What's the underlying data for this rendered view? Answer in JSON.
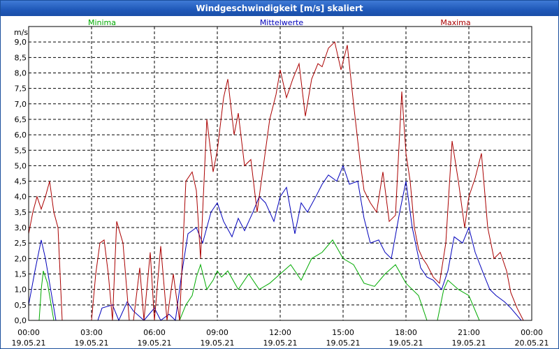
{
  "window": {
    "title": "Windgeschwindigkeit [m/s] skaliert"
  },
  "chart_data": {
    "type": "line",
    "title": "Windgeschwindigkeit [m/s] skaliert",
    "ylabel": "m/s",
    "xlabel": "",
    "ylim": [
      0,
      9.5
    ],
    "xlim_hours": [
      0,
      24
    ],
    "grid": true,
    "y_ticks": [
      "0,0",
      "0,5",
      "1,0",
      "1,5",
      "2,0",
      "2,5",
      "3,0",
      "3,5",
      "4,0",
      "4,5",
      "5,0",
      "5,5",
      "6,0",
      "6,5",
      "7,0",
      "7,5",
      "8,0",
      "8,5",
      "9,0"
    ],
    "x_ticks": [
      {
        "time": "00:00",
        "date": "19.05.21"
      },
      {
        "time": "03:00",
        "date": "19.05.21"
      },
      {
        "time": "06:00",
        "date": "19.05.21"
      },
      {
        "time": "09:00",
        "date": "19.05.21"
      },
      {
        "time": "12:00",
        "date": "19.05.21"
      },
      {
        "time": "15:00",
        "date": "19.05.21"
      },
      {
        "time": "18:00",
        "date": "19.05.21"
      },
      {
        "time": "21:00",
        "date": "19.05.21"
      },
      {
        "time": "00:00",
        "date": "20.05.21"
      }
    ],
    "series": [
      {
        "name": "Minima",
        "color": "#00aa00",
        "x": [
          0,
          0.5,
          0.6,
          0.7,
          0.9,
          1.2,
          1.5,
          2,
          2.5,
          3,
          3.5,
          3.7,
          4,
          4.5,
          5,
          5.5,
          6,
          6.5,
          7,
          7.2,
          7.5,
          7.8,
          8,
          8.2,
          8.5,
          8.8,
          9,
          9.2,
          9.5,
          10,
          10.5,
          11,
          11.5,
          12,
          12.5,
          13,
          13.5,
          14,
          14.5,
          15,
          15.5,
          16,
          16.5,
          17,
          17.5,
          18,
          18.3,
          18.6,
          19,
          19.5,
          19.8,
          20,
          20.5,
          21,
          21.5,
          22,
          22.5,
          23,
          23.5,
          24
        ],
        "values": [
          0,
          0,
          1.0,
          1.6,
          1.2,
          0,
          0,
          0,
          0,
          0,
          0,
          0,
          0,
          0,
          0,
          0,
          0,
          0,
          0,
          0,
          0.5,
          0.8,
          1.4,
          1.8,
          1.0,
          1.3,
          1.6,
          1.4,
          1.6,
          1.0,
          1.5,
          1.0,
          1.2,
          1.5,
          1.8,
          1.3,
          2.0,
          2.2,
          2.6,
          2.0,
          1.8,
          1.2,
          1.1,
          1.5,
          1.8,
          1.2,
          1.0,
          0.8,
          0,
          0,
          1.0,
          1.3,
          1.0,
          0.8,
          0,
          0,
          0,
          0,
          0,
          0
        ]
      },
      {
        "name": "Mittelwerte",
        "color": "#0000bb",
        "x": [
          0,
          0.3,
          0.6,
          0.8,
          1,
          1.3,
          1.5,
          2,
          2.5,
          3,
          3.3,
          3.5,
          4,
          4.3,
          4.7,
          5,
          5.5,
          6,
          6.3,
          6.7,
          7,
          7.3,
          7.6,
          8,
          8.3,
          8.7,
          9,
          9.3,
          9.7,
          10,
          10.3,
          10.7,
          11,
          11.3,
          11.7,
          12,
          12.3,
          12.7,
          13,
          13.3,
          13.7,
          14,
          14.3,
          14.7,
          15,
          15.3,
          15.7,
          16,
          16.3,
          16.7,
          17,
          17.3,
          17.7,
          18,
          18.3,
          18.7,
          19,
          19.3,
          19.7,
          20,
          20.3,
          20.7,
          21,
          21.3,
          21.7,
          22,
          22.3,
          22.7,
          23,
          23.5,
          24
        ],
        "values": [
          0.5,
          1.6,
          2.6,
          2.0,
          1.2,
          0,
          0,
          0,
          0,
          0,
          0,
          0.4,
          0.5,
          0,
          0.6,
          0.3,
          0,
          0.4,
          0,
          0.2,
          0,
          1.5,
          2.8,
          3.0,
          2.5,
          3.5,
          3.8,
          3.2,
          2.7,
          3.3,
          2.9,
          3.5,
          4.0,
          3.8,
          3.2,
          4.0,
          4.3,
          2.8,
          3.8,
          3.5,
          4.0,
          4.4,
          4.7,
          4.5,
          5.0,
          4.4,
          4.5,
          3.3,
          2.5,
          2.6,
          2.2,
          2.0,
          3.5,
          4.5,
          3.0,
          1.7,
          1.4,
          1.3,
          1.0,
          1.6,
          2.7,
          2.5,
          3.0,
          2.2,
          1.5,
          1.0,
          0.8,
          0.6,
          0.4,
          0,
          0
        ]
      },
      {
        "name": "Maxima",
        "color": "#aa0000",
        "x": [
          0,
          0.2,
          0.4,
          0.6,
          0.8,
          1,
          1.2,
          1.4,
          1.6,
          2,
          2.5,
          3,
          3.2,
          3.4,
          3.6,
          3.8,
          4,
          4.2,
          4.5,
          4.8,
          5,
          5.3,
          5.5,
          5.8,
          6,
          6.3,
          6.6,
          6.9,
          7.2,
          7.5,
          7.8,
          8,
          8.2,
          8.5,
          8.8,
          9,
          9.3,
          9.5,
          9.8,
          10,
          10.3,
          10.6,
          10.9,
          11.2,
          11.5,
          11.8,
          12,
          12.3,
          12.6,
          12.9,
          13.2,
          13.5,
          13.8,
          14,
          14.3,
          14.6,
          14.9,
          15.2,
          15.5,
          15.8,
          16,
          16.3,
          16.6,
          16.9,
          17.2,
          17.5,
          17.8,
          18,
          18.2,
          18.4,
          18.6,
          18.8,
          19,
          19.3,
          19.6,
          19.9,
          20.2,
          20.5,
          20.8,
          21,
          21.3,
          21.6,
          21.9,
          22.2,
          22.5,
          22.8,
          23,
          23.3,
          23.6,
          24
        ],
        "values": [
          2.8,
          3.5,
          4.0,
          3.6,
          4.0,
          4.5,
          3.5,
          3.0,
          0,
          0,
          0,
          0,
          1.5,
          2.5,
          2.6,
          1.5,
          0,
          3.2,
          2.5,
          0,
          0,
          1.7,
          0,
          2.2,
          0,
          2.4,
          0,
          1.5,
          0,
          4.5,
          4.8,
          4.2,
          2.0,
          6.5,
          4.8,
          5.5,
          7.2,
          7.8,
          6.0,
          6.7,
          5.0,
          5.2,
          3.5,
          5.0,
          6.5,
          7.3,
          8.1,
          7.2,
          7.8,
          8.3,
          6.6,
          7.8,
          8.3,
          8.2,
          8.8,
          9.0,
          8.1,
          8.9,
          7.0,
          5.2,
          4.2,
          3.8,
          3.5,
          4.8,
          3.2,
          3.4,
          7.4,
          5.4,
          4.5,
          3.0,
          2.3,
          2.0,
          1.8,
          1.4,
          1.2,
          2.5,
          5.8,
          4.5,
          3.0,
          4.0,
          4.6,
          5.4,
          3.0,
          2.0,
          2.2,
          1.6,
          0.9,
          0.4,
          0,
          0
        ]
      }
    ]
  }
}
